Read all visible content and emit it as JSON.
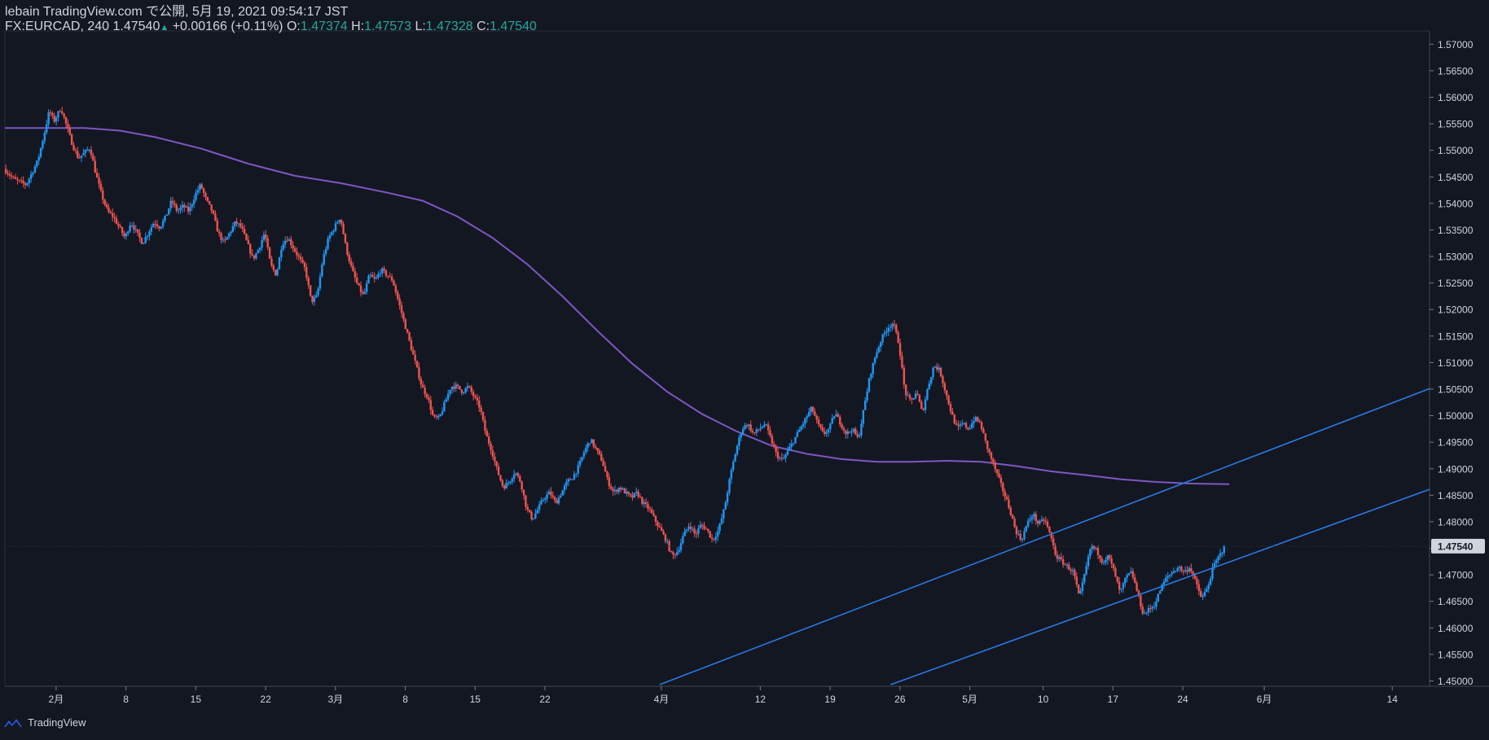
{
  "header": {
    "publisher_line": "lebain TradingView.com で公開, 5月 19, 2021 09:54:17 JST",
    "symbol": "FX:EURCAD, 240",
    "last": "1.47540",
    "change": "+0.00166 (+0.11%)",
    "o_label": "O:",
    "o_value": "1.47374",
    "h_label": "H:",
    "h_value": "1.47573",
    "l_label": "L:",
    "l_value": "1.47328",
    "c_label": "C:",
    "c_value": "1.47540"
  },
  "footer": {
    "brand": "TradingView"
  },
  "colors": {
    "background": "#131722",
    "up": "#2196f3",
    "down": "#ef5350",
    "ma": "#7e57c2",
    "trendline": "#2962ff",
    "axis_text": "#d1d4dc",
    "price_label_bg": "#d1d4dc",
    "price_label_text": "#131722"
  },
  "chart_data": {
    "type": "candlestick",
    "instrument": "FX:EURCAD",
    "interval": "240",
    "y_ticks": [
      "1.57000",
      "1.56500",
      "1.56000",
      "1.55500",
      "1.55000",
      "1.54500",
      "1.54000",
      "1.53500",
      "1.53000",
      "1.52500",
      "1.52000",
      "1.51500",
      "1.51000",
      "1.50500",
      "1.50000",
      "1.49500",
      "1.49000",
      "1.48500",
      "1.48000",
      "1.47500",
      "1.47000",
      "1.46500",
      "1.46000",
      "1.45500",
      "1.45000"
    ],
    "current_price_label": "1.47540",
    "ylim": [
      1.449,
      1.5725
    ],
    "x_ticks": [
      {
        "label": "2月",
        "t": 2.5
      },
      {
        "label": "8",
        "t": 8.5
      },
      {
        "label": "15",
        "t": 14.5
      },
      {
        "label": "22",
        "t": 20.5
      },
      {
        "label": "3月",
        "t": 26.5
      },
      {
        "label": "8",
        "t": 32.5
      },
      {
        "label": "15",
        "t": 38.5
      },
      {
        "label": "22",
        "t": 44.5
      },
      {
        "label": "4月",
        "t": 54.5
      },
      {
        "label": "12",
        "t": 63
      },
      {
        "label": "19",
        "t": 69
      },
      {
        "label": "26",
        "t": 75
      },
      {
        "label": "5月",
        "t": 81
      },
      {
        "label": "10",
        "t": 87.3
      },
      {
        "label": "17",
        "t": 93.3
      },
      {
        "label": "24",
        "t": 99.3
      },
      {
        "label": "6月",
        "t": 106.3
      },
      {
        "label": "14",
        "t": 117.3
      }
    ],
    "x_range": [
      -1.9,
      120.5
    ],
    "price_path": [
      [
        -1.9,
        1.5465
      ],
      [
        -1,
        1.5445
      ],
      [
        0,
        1.5435
      ],
      [
        1,
        1.548
      ],
      [
        1.5,
        1.5525
      ],
      [
        2,
        1.5575
      ],
      [
        2.4,
        1.5555
      ],
      [
        3,
        1.558
      ],
      [
        3.5,
        1.5545
      ],
      [
        4,
        1.551
      ],
      [
        4.5,
        1.5485
      ],
      [
        5,
        1.5495
      ],
      [
        5.5,
        1.5505
      ],
      [
        6,
        1.5455
      ],
      [
        6.5,
        1.5415
      ],
      [
        7,
        1.5385
      ],
      [
        7.5,
        1.5375
      ],
      [
        8,
        1.5355
      ],
      [
        8.5,
        1.5335
      ],
      [
        9,
        1.5365
      ],
      [
        9.5,
        1.5345
      ],
      [
        10,
        1.5325
      ],
      [
        10.5,
        1.5345
      ],
      [
        11,
        1.5365
      ],
      [
        11.5,
        1.5355
      ],
      [
        12,
        1.5375
      ],
      [
        12.5,
        1.5405
      ],
      [
        13,
        1.5385
      ],
      [
        13.5,
        1.5395
      ],
      [
        14,
        1.5385
      ],
      [
        14.5,
        1.5415
      ],
      [
        15,
        1.5435
      ],
      [
        15.5,
        1.5405
      ],
      [
        16,
        1.5385
      ],
      [
        16.5,
        1.5345
      ],
      [
        17,
        1.5325
      ],
      [
        17.5,
        1.5345
      ],
      [
        18,
        1.5365
      ],
      [
        18.5,
        1.5355
      ],
      [
        19,
        1.5325
      ],
      [
        19.5,
        1.5295
      ],
      [
        20,
        1.5315
      ],
      [
        20.5,
        1.5345
      ],
      [
        21,
        1.5285
      ],
      [
        21.5,
        1.5265
      ],
      [
        22,
        1.5325
      ],
      [
        22.5,
        1.5335
      ],
      [
        23,
        1.5315
      ],
      [
        23.5,
        1.5295
      ],
      [
        24,
        1.5275
      ],
      [
        24.5,
        1.5215
      ],
      [
        25,
        1.5225
      ],
      [
        25.5,
        1.5295
      ],
      [
        26,
        1.5335
      ],
      [
        26.5,
        1.5355
      ],
      [
        27,
        1.5375
      ],
      [
        27.5,
        1.5315
      ],
      [
        28,
        1.5275
      ],
      [
        28.5,
        1.5245
      ],
      [
        29,
        1.5225
      ],
      [
        29.5,
        1.5265
      ],
      [
        30,
        1.5255
      ],
      [
        30.5,
        1.5275
      ],
      [
        31,
        1.5265
      ],
      [
        31.5,
        1.5255
      ],
      [
        32,
        1.5215
      ],
      [
        32.5,
        1.5175
      ],
      [
        33,
        1.5135
      ],
      [
        33.5,
        1.5095
      ],
      [
        34,
        1.5055
      ],
      [
        34.5,
        1.5035
      ],
      [
        35,
        1.4995
      ],
      [
        35.5,
        1.4995
      ],
      [
        36,
        1.5025
      ],
      [
        36.5,
        1.5055
      ],
      [
        37,
        1.5055
      ],
      [
        37.5,
        1.5045
      ],
      [
        38,
        1.5055
      ],
      [
        38.5,
        1.5035
      ],
      [
        39,
        1.5015
      ],
      [
        39.5,
        1.4965
      ],
      [
        40,
        1.4935
      ],
      [
        40.5,
        1.4895
      ],
      [
        41,
        1.4865
      ],
      [
        41.5,
        1.4875
      ],
      [
        42,
        1.4895
      ],
      [
        42.5,
        1.4875
      ],
      [
        43,
        1.4825
      ],
      [
        43.5,
        1.4805
      ],
      [
        44,
        1.4825
      ],
      [
        44.5,
        1.4845
      ],
      [
        45,
        1.4855
      ],
      [
        45.5,
        1.4835
      ],
      [
        46,
        1.4855
      ],
      [
        46.5,
        1.4875
      ],
      [
        47,
        1.4885
      ],
      [
        47.5,
        1.4905
      ],
      [
        48,
        1.4935
      ],
      [
        48.5,
        1.4955
      ],
      [
        49,
        1.4935
      ],
      [
        49.5,
        1.4915
      ],
      [
        50,
        1.4875
      ],
      [
        50.5,
        1.4855
      ],
      [
        51,
        1.4865
      ],
      [
        51.5,
        1.4855
      ],
      [
        52,
        1.4845
      ],
      [
        52.5,
        1.4855
      ],
      [
        53,
        1.4835
      ],
      [
        53.5,
        1.4825
      ],
      [
        54,
        1.4805
      ],
      [
        54.5,
        1.4785
      ],
      [
        55,
        1.4765
      ],
      [
        55.5,
        1.4735
      ],
      [
        56,
        1.4745
      ],
      [
        56.5,
        1.4775
      ],
      [
        57,
        1.4795
      ],
      [
        57.5,
        1.4775
      ],
      [
        58,
        1.4795
      ],
      [
        58.5,
        1.4785
      ],
      [
        59,
        1.4765
      ],
      [
        59.5,
        1.4785
      ],
      [
        60,
        1.4825
      ],
      [
        60.5,
        1.4885
      ],
      [
        61,
        1.4935
      ],
      [
        61.5,
        1.4975
      ],
      [
        62,
        1.4985
      ],
      [
        62.5,
        1.4965
      ],
      [
        63,
        1.4975
      ],
      [
        63.5,
        1.4985
      ],
      [
        64,
        1.4955
      ],
      [
        64.5,
        1.4925
      ],
      [
        65,
        1.4915
      ],
      [
        65.5,
        1.4935
      ],
      [
        66,
        1.4955
      ],
      [
        66.5,
        1.4975
      ],
      [
        67,
        1.4995
      ],
      [
        67.5,
        1.5015
      ],
      [
        68,
        1.4985
      ],
      [
        68.5,
        1.4965
      ],
      [
        69,
        1.4975
      ],
      [
        69.5,
        1.5005
      ],
      [
        70,
        1.4985
      ],
      [
        70.5,
        1.4965
      ],
      [
        71,
        1.4975
      ],
      [
        71.5,
        1.4955
      ],
      [
        72,
        1.5015
      ],
      [
        72.5,
        1.5075
      ],
      [
        73,
        1.5115
      ],
      [
        73.5,
        1.5145
      ],
      [
        74,
        1.5165
      ],
      [
        74.5,
        1.5175
      ],
      [
        75,
        1.5135
      ],
      [
        75.5,
        1.5045
      ],
      [
        76,
        1.5025
      ],
      [
        76.5,
        1.5045
      ],
      [
        77,
        1.5005
      ],
      [
        77.5,
        1.5055
      ],
      [
        78,
        1.5095
      ],
      [
        78.5,
        1.5085
      ],
      [
        79,
        1.5045
      ],
      [
        79.5,
        1.5005
      ],
      [
        80,
        1.4975
      ],
      [
        80.5,
        1.4985
      ],
      [
        81,
        1.4975
      ],
      [
        81.5,
        1.4995
      ],
      [
        82,
        1.4985
      ],
      [
        82.5,
        1.4945
      ],
      [
        83,
        1.4915
      ],
      [
        83.5,
        1.4885
      ],
      [
        84,
        1.4855
      ],
      [
        84.5,
        1.4825
      ],
      [
        85,
        1.4785
      ],
      [
        85.5,
        1.4765
      ],
      [
        86,
        1.4795
      ],
      [
        86.5,
        1.4815
      ],
      [
        87,
        1.4795
      ],
      [
        87.5,
        1.4805
      ],
      [
        88,
        1.4775
      ],
      [
        88.5,
        1.4735
      ],
      [
        89,
        1.4725
      ],
      [
        89.5,
        1.4715
      ],
      [
        90,
        1.4705
      ],
      [
        90.5,
        1.4655
      ],
      [
        91,
        1.4705
      ],
      [
        91.5,
        1.4755
      ],
      [
        92,
        1.4745
      ],
      [
        92.5,
        1.4725
      ],
      [
        93,
        1.4735
      ],
      [
        93.5,
        1.4705
      ],
      [
        94,
        1.4665
      ],
      [
        94.5,
        1.4695
      ],
      [
        95,
        1.4705
      ],
      [
        95.5,
        1.4665
      ],
      [
        96,
        1.4625
      ],
      [
        96.5,
        1.4635
      ],
      [
        97,
        1.4645
      ],
      [
        97.5,
        1.4675
      ],
      [
        98,
        1.4695
      ],
      [
        98.5,
        1.4705
      ],
      [
        99,
        1.4715
      ],
      [
        99.5,
        1.4705
      ],
      [
        100,
        1.4715
      ],
      [
        100.5,
        1.4685
      ],
      [
        101,
        1.4655
      ],
      [
        101.5,
        1.4675
      ],
      [
        102,
        1.4715
      ],
      [
        102.5,
        1.4735
      ],
      [
        103,
        1.4754
      ]
    ],
    "moving_average": [
      [
        -1.9,
        1.5542
      ],
      [
        5,
        1.5542
      ],
      [
        8,
        1.5537
      ],
      [
        11,
        1.5525
      ],
      [
        15,
        1.5503
      ],
      [
        19,
        1.5475
      ],
      [
        23,
        1.5452
      ],
      [
        27,
        1.5438
      ],
      [
        31,
        1.542
      ],
      [
        34,
        1.5405
      ],
      [
        37,
        1.5375
      ],
      [
        40,
        1.5335
      ],
      [
        43,
        1.5285
      ],
      [
        46,
        1.5225
      ],
      [
        49,
        1.516
      ],
      [
        52,
        1.5098
      ],
      [
        55,
        1.5045
      ],
      [
        58,
        1.5003
      ],
      [
        61,
        1.497
      ],
      [
        64,
        1.4943
      ],
      [
        67,
        1.4928
      ],
      [
        70,
        1.4918
      ],
      [
        73,
        1.4913
      ],
      [
        76,
        1.4913
      ],
      [
        79,
        1.4915
      ],
      [
        82,
        1.4913
      ],
      [
        85,
        1.4905
      ],
      [
        88,
        1.4895
      ],
      [
        91,
        1.4888
      ],
      [
        94,
        1.488
      ],
      [
        97,
        1.4875
      ],
      [
        100,
        1.4872
      ],
      [
        103.3,
        1.4871
      ]
    ],
    "trendlines": [
      {
        "points": [
          [
            54.35,
            1.4493
          ],
          [
            120.5,
            1.5051
          ]
        ]
      },
      {
        "points": [
          [
            74.2,
            1.4493
          ],
          [
            120.5,
            1.4861
          ]
        ]
      }
    ]
  }
}
